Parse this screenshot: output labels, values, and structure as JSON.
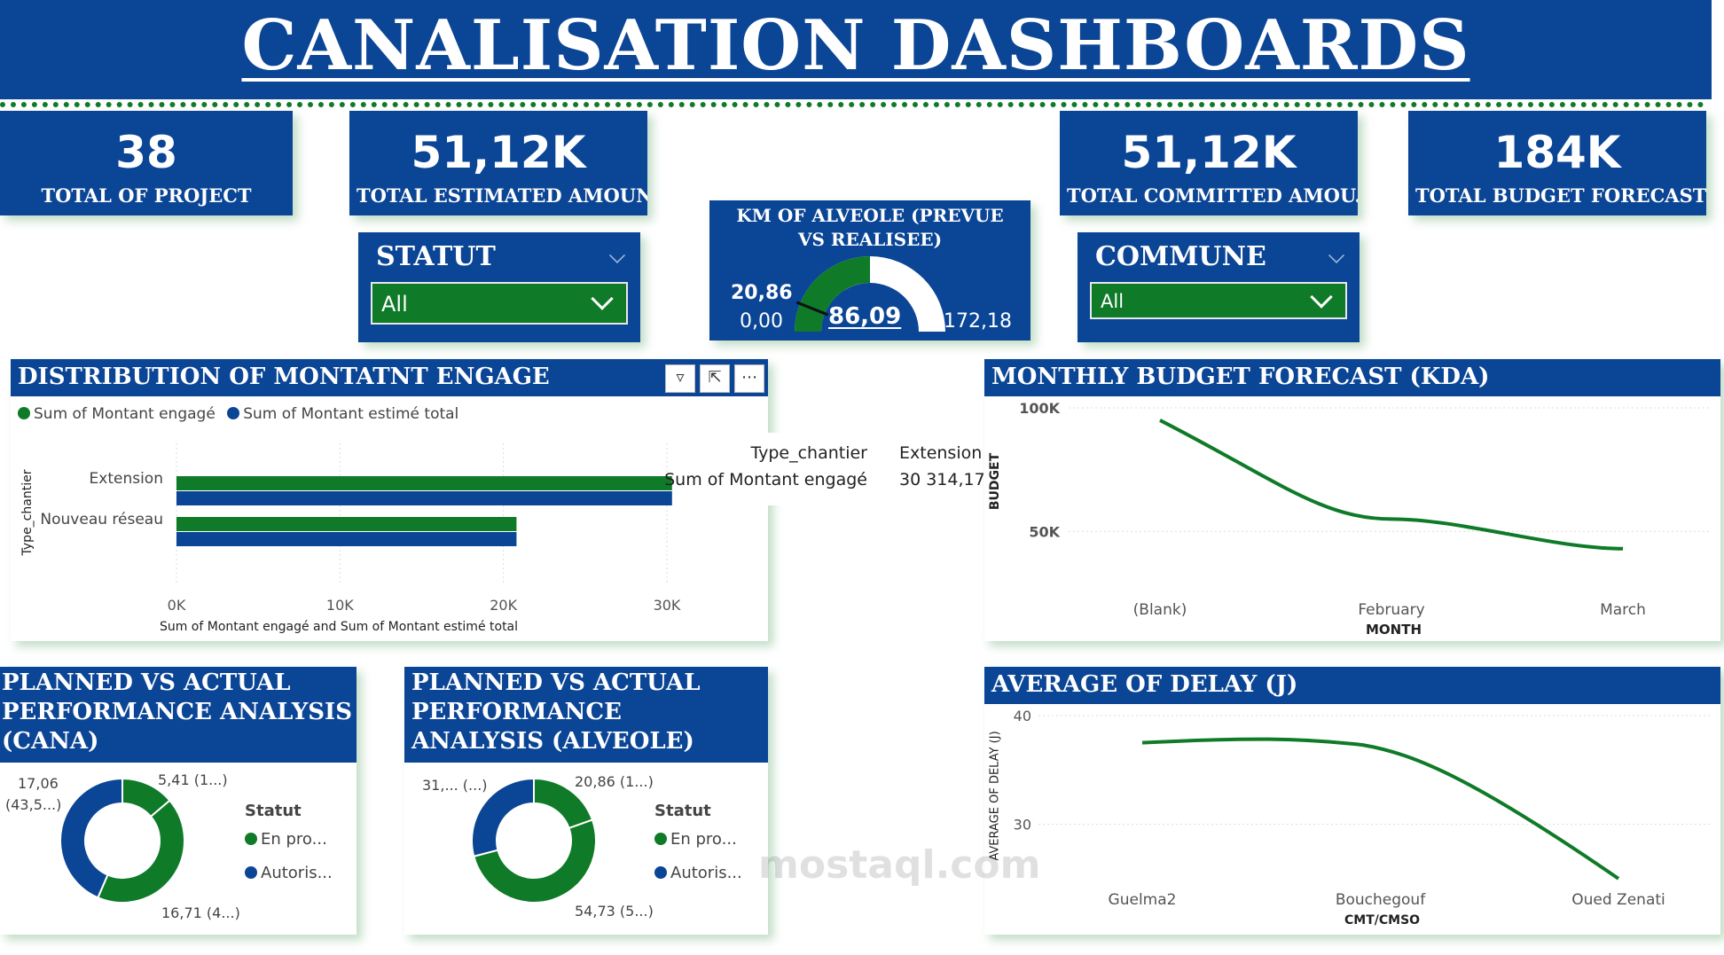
{
  "title": "CANALISATION DASHBOARDS",
  "kpis": [
    {
      "value": "38",
      "label": "TOTAL OF PROJECT"
    },
    {
      "value": "51,12K",
      "label": "TOTAL ESTIMATED AMOUNT"
    },
    {
      "value": "51,12K",
      "label": "TOTAL COMMITTED AMOU..."
    },
    {
      "value": "184K",
      "label": "TOTAL BUDGET FORECAST ..."
    }
  ],
  "slicers": {
    "statut": {
      "title": "STATUT",
      "value": "All"
    },
    "commune": {
      "title": "COMMUNE",
      "value": "All"
    }
  },
  "gauge": {
    "title": "KM OF ALVEOLE (PREVUE VS REALISEE)",
    "value": "86,09",
    "target": "20,86",
    "min": "0,00",
    "max": "172,18",
    "value_num": 86.09,
    "max_num": 172.18,
    "target_num": 20.86,
    "fill_color": "#0f7a28"
  },
  "distribution": {
    "title": "DISTRIBUTION OF MONTATNT ENGAGE",
    "legend": [
      "Sum of Montant engagé",
      "Sum of Montant estimé total"
    ],
    "y_title": "Type_chantier",
    "x_title": "Sum of Montant engagé and Sum of Montant estimé total",
    "tooltip": {
      "k1": "Type_chantier",
      "v1": "Extension",
      "k2": "Sum of Montant engagé",
      "v2": "30 314,17"
    },
    "chart_data": {
      "type": "bar",
      "orientation": "horizontal",
      "categories": [
        "Extension",
        "Nouveau réseau"
      ],
      "series": [
        {
          "name": "Sum of Montant engagé",
          "values": [
            30314.17,
            20800
          ],
          "color": "#0f7a28"
        },
        {
          "name": "Sum of Montant estimé total",
          "values": [
            30314.17,
            20800
          ],
          "color": "#0b4595"
        }
      ],
      "x_ticks": [
        "0K",
        "10K",
        "20K",
        "30K"
      ],
      "xlim": [
        0,
        30000
      ]
    }
  },
  "monthly": {
    "title": "MONTHLY BUDGET FORECAST (KDA)",
    "y_title": "BUDGET",
    "x_title": "MONTH",
    "chart_data": {
      "type": "line",
      "categories": [
        "(Blank)",
        "February",
        "March"
      ],
      "values": [
        95000,
        55000,
        43000
      ],
      "y_ticks": [
        "100K",
        "50K"
      ],
      "ylim": [
        30000,
        100000
      ],
      "color": "#0f7a28"
    }
  },
  "delay": {
    "title": "AVERAGE OF DELAY (J)",
    "y_title": "AVERAGE OF DELAY (J)",
    "x_title": "CMT/CMSO",
    "chart_data": {
      "type": "line",
      "categories": [
        "Guelma2",
        "Bouchegouf",
        "Oued Zenati"
      ],
      "values": [
        37.5,
        37.3,
        25.0
      ],
      "y_ticks": [
        "40",
        "30"
      ],
      "ylim": [
        24.5,
        40
      ],
      "color": "#0f7a28"
    }
  },
  "donut_cana": {
    "title": "PLANNED VS ACTUAL PERFORMANCE ANALYSIS (CANA)",
    "legend_title": "Statut",
    "legend": [
      "En pro...",
      "Autoris..."
    ],
    "labels": {
      "tl1": "17,06",
      "tl2": "(43,5...)",
      "tr": "5,41 (1...)",
      "br": "16,71 (4...)"
    },
    "chart_data": {
      "type": "pie",
      "slices": [
        {
          "name": "En pro...",
          "value": 16.71,
          "color": "#0f7a28"
        },
        {
          "name": "Autoris...",
          "value": 17.06,
          "color": "#0b4595"
        },
        {
          "name": "En pro...",
          "value": 5.41,
          "color": "#0f7a28"
        }
      ]
    }
  },
  "donut_alveole": {
    "title": "PLANNED VS ACTUAL PERFORMANCE ANALYSIS (ALVEOLE)",
    "legend_title": "Statut",
    "legend": [
      "En pro...",
      "Autoris..."
    ],
    "labels": {
      "tl": "31,... (...)",
      "tr": "20,86 (1...)",
      "br": "54,73 (5...)"
    },
    "chart_data": {
      "type": "pie",
      "slices": [
        {
          "name": "En pro...",
          "value": 54.73,
          "color": "#0f7a28"
        },
        {
          "name": "Autoris...",
          "value": 31.0,
          "color": "#0b4595"
        },
        {
          "name": "En pro...",
          "value": 20.86,
          "color": "#0f7a28"
        }
      ]
    }
  },
  "colors": {
    "blue": "#0b4595",
    "green": "#0f7a28"
  },
  "watermark": "mostaql.com"
}
